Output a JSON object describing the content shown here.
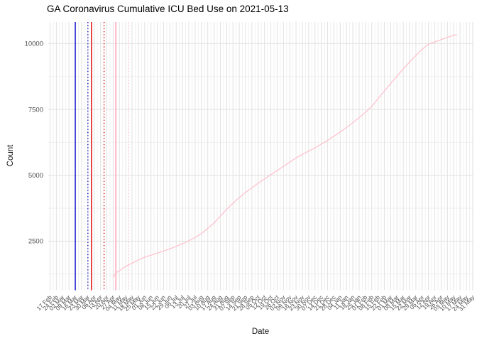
{
  "title": "GA Coronavirus Cumulative ICU Bed Use on 2021-05-13",
  "chart_data": {
    "type": "line",
    "title": "GA Coronavirus Cumulative ICU Bed Use on 2021-05-13",
    "xlabel": "Date",
    "ylabel": "Count",
    "ylim": [
      640,
      10800
    ],
    "grid": true,
    "legend_position": "none",
    "y_axis": {
      "major_ticks": [
        2500,
        5000,
        7500,
        10000
      ],
      "minor_ticks": [
        1250,
        3750,
        6250,
        8750
      ]
    },
    "x_axis": {
      "start": "2020-02-17",
      "end": "2021-05-31",
      "interval_days": 7,
      "labels": [
        "17 Feb",
        "24 Feb",
        "02 Mar",
        "09 Mar",
        "16 Mar",
        "23 Mar",
        "30 Mar",
        "06 Apr",
        "13 Apr",
        "20 Apr",
        "27 Apr",
        "04 May",
        "11 May",
        "18 May",
        "25 May",
        "01 Jun",
        "08 Jun",
        "15 Jun",
        "22 Jun",
        "29 Jun",
        "06 Jul",
        "13 Jul",
        "20 Jul",
        "27 Jul",
        "03 Aug",
        "10 Aug",
        "17 Aug",
        "24 Aug",
        "31 Aug",
        "07 Sep",
        "14 Sep",
        "21 Sep",
        "28 Sep",
        "05 Oct",
        "12 Oct",
        "19 Oct",
        "26 Oct",
        "02 Nov",
        "09 Nov",
        "16 Nov",
        "23 Nov",
        "30 Nov",
        "07 Dec",
        "14 Dec",
        "21 Dec",
        "28 Dec",
        "04 Jan",
        "11 Jan",
        "18 Jan",
        "25 Jan",
        "01 Feb",
        "08 Feb",
        "15 Feb",
        "22 Feb",
        "01 Mar",
        "08 Mar",
        "15 Mar",
        "22 Mar",
        "29 Mar",
        "05 Apr",
        "12 Apr",
        "19 Apr",
        "26 Apr",
        "03 May",
        "10 May",
        "17 May",
        "24 May",
        "31 May"
      ]
    },
    "series": [
      {
        "name": "cumulative-icu-bed-use",
        "color": "#FFBFCB",
        "points": [
          [
            "2020-04-27",
            1130
          ],
          [
            "2020-04-30",
            1300
          ],
          [
            "2020-05-04",
            1370
          ],
          [
            "2020-05-11",
            1545
          ],
          [
            "2020-05-18",
            1663
          ],
          [
            "2020-05-25",
            1783
          ],
          [
            "2020-06-01",
            1887
          ],
          [
            "2020-06-08",
            1965
          ],
          [
            "2020-06-15",
            2045
          ],
          [
            "2020-06-22",
            2125
          ],
          [
            "2020-06-29",
            2205
          ],
          [
            "2020-07-06",
            2304
          ],
          [
            "2020-07-13",
            2402
          ],
          [
            "2020-07-20",
            2514
          ],
          [
            "2020-07-27",
            2634
          ],
          [
            "2020-08-03",
            2785
          ],
          [
            "2020-08-10",
            2983
          ],
          [
            "2020-08-17",
            3191
          ],
          [
            "2020-08-24",
            3452
          ],
          [
            "2020-08-31",
            3712
          ],
          [
            "2020-09-07",
            3934
          ],
          [
            "2020-09-14",
            4154
          ],
          [
            "2020-09-21",
            4350
          ],
          [
            "2020-09-28",
            4528
          ],
          [
            "2020-10-05",
            4700
          ],
          [
            "2020-10-12",
            4860
          ],
          [
            "2020-10-19",
            5018
          ],
          [
            "2020-10-26",
            5179
          ],
          [
            "2020-11-02",
            5340
          ],
          [
            "2020-11-09",
            5498
          ],
          [
            "2020-11-16",
            5658
          ],
          [
            "2020-11-23",
            5795
          ],
          [
            "2020-11-30",
            5915
          ],
          [
            "2020-12-07",
            6040
          ],
          [
            "2020-12-14",
            6181
          ],
          [
            "2020-12-21",
            6322
          ],
          [
            "2020-12-28",
            6481
          ],
          [
            "2021-01-04",
            6641
          ],
          [
            "2021-01-11",
            6818
          ],
          [
            "2021-01-18",
            6996
          ],
          [
            "2021-01-25",
            7188
          ],
          [
            "2021-02-01",
            7389
          ],
          [
            "2021-02-08",
            7615
          ],
          [
            "2021-02-15",
            7908
          ],
          [
            "2021-02-22",
            8199
          ],
          [
            "2021-03-01",
            8484
          ],
          [
            "2021-03-08",
            8766
          ],
          [
            "2021-03-15",
            9036
          ],
          [
            "2021-03-22",
            9303
          ],
          [
            "2021-03-29",
            9550
          ],
          [
            "2021-04-05",
            9786
          ],
          [
            "2021-04-12",
            9977
          ],
          [
            "2021-04-19",
            10062
          ],
          [
            "2021-04-26",
            10148
          ],
          [
            "2021-05-03",
            10235
          ],
          [
            "2021-05-10",
            10320
          ],
          [
            "2021-05-13",
            10330
          ]
        ]
      }
    ],
    "vlines": [
      {
        "date": "2020-03-16",
        "color": "#0A0AC8",
        "style": "solid",
        "width": 1.4
      },
      {
        "date": "2020-03-30",
        "color": "#0A0AC8",
        "style": "dotted",
        "width": 1.4
      },
      {
        "date": "2020-04-03",
        "color": "#E00000",
        "style": "solid",
        "width": 1.4
      },
      {
        "date": "2020-04-17",
        "color": "#E00000",
        "style": "dotted",
        "width": 1.4
      },
      {
        "date": "2020-04-30",
        "color": "#FFB7C5",
        "style": "solid",
        "width": 2.0
      },
      {
        "date": "2020-05-14",
        "color": "#FFC9D4",
        "style": "dotted",
        "width": 1.6
      }
    ]
  }
}
